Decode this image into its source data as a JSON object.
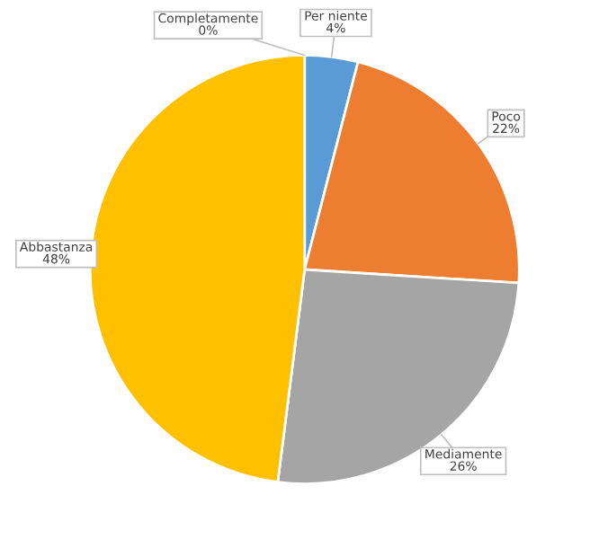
{
  "chart_data": {
    "type": "pie",
    "categories": [
      "Completamente",
      "Per niente",
      "Poco",
      "Mediamente",
      "Abbastanza"
    ],
    "values": [
      0,
      4,
      22,
      26,
      48
    ],
    "colors": [
      "#5b9bd5",
      "#5b9bd5",
      "#ed7d31",
      "#a5a5a5",
      "#ffc000"
    ],
    "value_labels": [
      "0%",
      "4%",
      "22%",
      "26%",
      "48%"
    ]
  }
}
